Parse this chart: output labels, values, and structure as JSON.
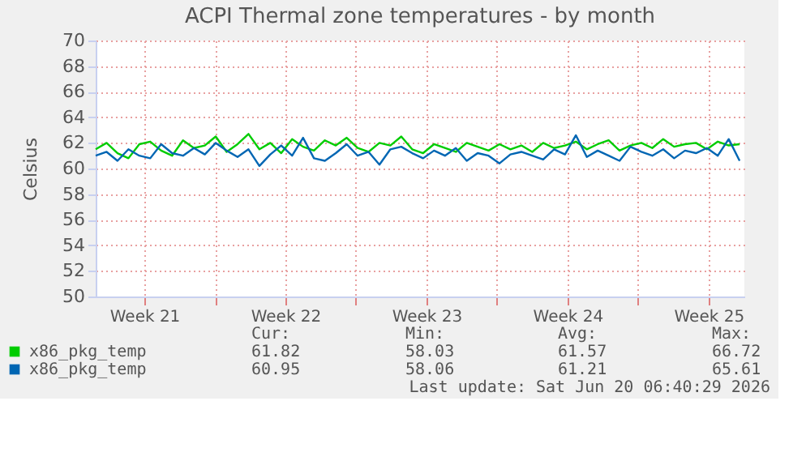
{
  "chart_data": {
    "type": "line",
    "title": "ACPI Thermal zone temperatures - by month",
    "ylabel": "Celsius",
    "x": [
      "2026-05-19T02:00",
      "2026-05-19T15:00",
      "2026-05-20T04:00",
      "2026-05-20T17:00",
      "2026-05-21T06:00",
      "2026-05-21T19:00",
      "2026-05-22T08:00",
      "2026-05-22T21:00",
      "2026-05-23T10:00",
      "2026-05-23T23:00",
      "2026-05-24T12:00",
      "2026-05-25T01:00",
      "2026-05-25T14:00",
      "2026-05-26T03:00",
      "2026-05-26T16:00",
      "2026-05-27T05:00",
      "2026-05-27T18:00",
      "2026-05-28T07:00",
      "2026-05-28T20:00",
      "2026-05-29T09:00",
      "2026-05-29T22:00",
      "2026-05-30T11:00",
      "2026-05-31T00:00",
      "2026-05-31T13:00",
      "2026-06-01T02:00",
      "2026-06-01T15:00",
      "2026-06-02T04:00",
      "2026-06-02T17:00",
      "2026-06-03T06:00",
      "2026-06-03T19:00",
      "2026-06-04T08:00",
      "2026-06-04T21:00",
      "2026-06-05T10:00",
      "2026-06-05T23:00",
      "2026-06-06T12:00",
      "2026-06-07T01:00",
      "2026-06-07T14:00",
      "2026-06-08T03:00",
      "2026-06-08T16:00",
      "2026-06-09T05:00",
      "2026-06-09T18:00",
      "2026-06-10T07:00",
      "2026-06-10T20:00",
      "2026-06-11T09:00",
      "2026-06-11T22:00",
      "2026-06-12T11:00",
      "2026-06-13T00:00",
      "2026-06-13T13:00",
      "2026-06-14T02:00",
      "2026-06-14T15:00",
      "2026-06-15T04:00",
      "2026-06-15T17:00",
      "2026-06-16T06:00",
      "2026-06-16T19:00",
      "2026-06-17T08:00",
      "2026-06-17T21:00",
      "2026-06-18T10:00",
      "2026-06-18T23:00",
      "2026-06-19T12:00",
      "2026-06-20T01:00"
    ],
    "series": [
      {
        "name": "x86_pkg_temp",
        "color": "#00cc00",
        "values": [
          61.5,
          62.0,
          61.2,
          60.8,
          61.9,
          62.1,
          61.4,
          61.0,
          62.2,
          61.6,
          61.8,
          62.5,
          61.3,
          61.9,
          62.7,
          61.5,
          62.0,
          61.2,
          62.3,
          61.7,
          61.4,
          62.2,
          61.8,
          62.4,
          61.6,
          61.3,
          62.0,
          61.8,
          62.5,
          61.5,
          61.2,
          61.9,
          61.6,
          61.3,
          62.0,
          61.7,
          61.4,
          61.9,
          61.5,
          61.8,
          61.3,
          62.0,
          61.6,
          61.8,
          62.1,
          61.5,
          61.9,
          62.2,
          61.4,
          61.8,
          62.0,
          61.6,
          62.3,
          61.7,
          61.9,
          62.0,
          61.5,
          62.1,
          61.8,
          61.9
        ]
      },
      {
        "name": "x86_pkg_temp",
        "color": "#0066b3",
        "values": [
          61.0,
          61.3,
          60.6,
          61.5,
          61.0,
          60.8,
          61.9,
          61.2,
          61.0,
          61.6,
          61.1,
          62.0,
          61.4,
          60.9,
          61.5,
          60.2,
          61.1,
          61.8,
          61.0,
          62.4,
          60.8,
          60.6,
          61.2,
          61.9,
          61.0,
          61.3,
          60.3,
          61.5,
          61.7,
          61.2,
          60.8,
          61.4,
          61.0,
          61.6,
          60.6,
          61.2,
          61.0,
          60.4,
          61.1,
          61.3,
          61.0,
          60.7,
          61.5,
          61.1,
          62.6,
          60.9,
          61.4,
          61.0,
          60.6,
          61.7,
          61.3,
          61.0,
          61.5,
          60.8,
          61.4,
          61.2,
          61.6,
          61.0,
          62.3,
          60.6
        ]
      }
    ],
    "xlim": [
      "2026-05-19T02:00",
      "2026-06-20T06:40"
    ],
    "xticks": [
      {
        "value": "2026-05-21T12:00",
        "label": "Week 21"
      },
      {
        "value": "2026-05-25",
        "label": null
      },
      {
        "value": "2026-05-28T12:00",
        "label": "Week 22"
      },
      {
        "value": "2026-06-01",
        "label": null
      },
      {
        "value": "2026-06-04T12:00",
        "label": "Week 23"
      },
      {
        "value": "2026-06-08",
        "label": null
      },
      {
        "value": "2026-06-11T12:00",
        "label": "Week 24"
      },
      {
        "value": "2026-06-15",
        "label": null
      },
      {
        "value": "2026-06-18T12:00",
        "label": "Week 25"
      }
    ],
    "ylim": [
      50,
      70
    ],
    "yticks": [
      50,
      52,
      54,
      56,
      58,
      60,
      62,
      64,
      66,
      68,
      70
    ],
    "grid": true,
    "legend": "bottom",
    "marker": "none",
    "line_style": "solid",
    "annotations": [
      "Cur:",
      "Min:",
      "Avg:",
      "Max:",
      "61.82",
      "58.03",
      "61.57",
      "66.72",
      "60.95",
      "58.06",
      "61.21",
      "65.61",
      "Last update: Sat Jun 20 06:40:29 2026"
    ]
  }
}
